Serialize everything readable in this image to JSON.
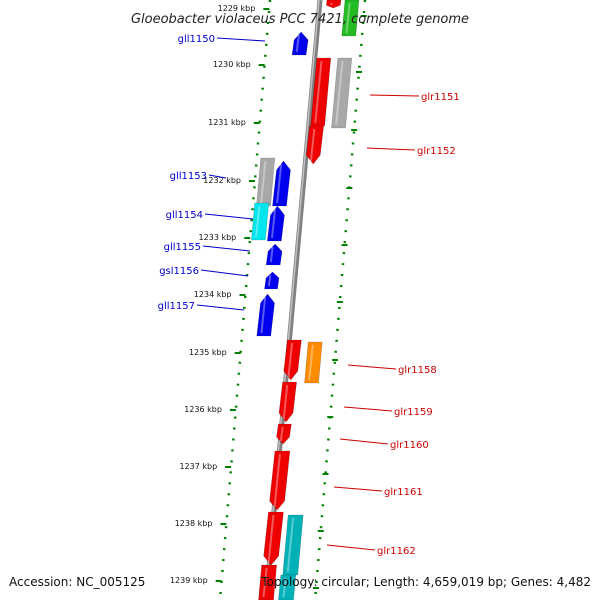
{
  "title": "Gloeobacter violaceus PCC 7421, complete genome",
  "accession": "Accession: NC_005125",
  "topology": "Topology: circular; Length: 4,659,019 bp; Genes: 4,482",
  "ticks": [
    "1229 kbp",
    "1230 kbp",
    "1231 kbp",
    "1232 kbp",
    "1233 kbp",
    "1234 kbp",
    "1235 kbp",
    "1236 kbp",
    "1237 kbp",
    "1238 kbp",
    "1239 kbp"
  ],
  "left_genes": [
    "gll1150",
    "gll1153",
    "gll1154",
    "gll1155",
    "gsl1156",
    "gll1157"
  ],
  "right_genes": [
    "glr1151",
    "glr1152",
    "glr1158",
    "glr1159",
    "glr1160",
    "glr1161",
    "glr1162"
  ],
  "colors": {
    "left_label": "#0000cc",
    "right_label": "#cc0000",
    "backbone": "#808080",
    "tick": "#008000",
    "blue": "#0000ee",
    "red": "#ee0000",
    "grey": "#a8a8a8",
    "cyan": "#00e5ee",
    "orange": "#ff8c00",
    "teal": "#00b2b8",
    "green": "#22bb22"
  }
}
